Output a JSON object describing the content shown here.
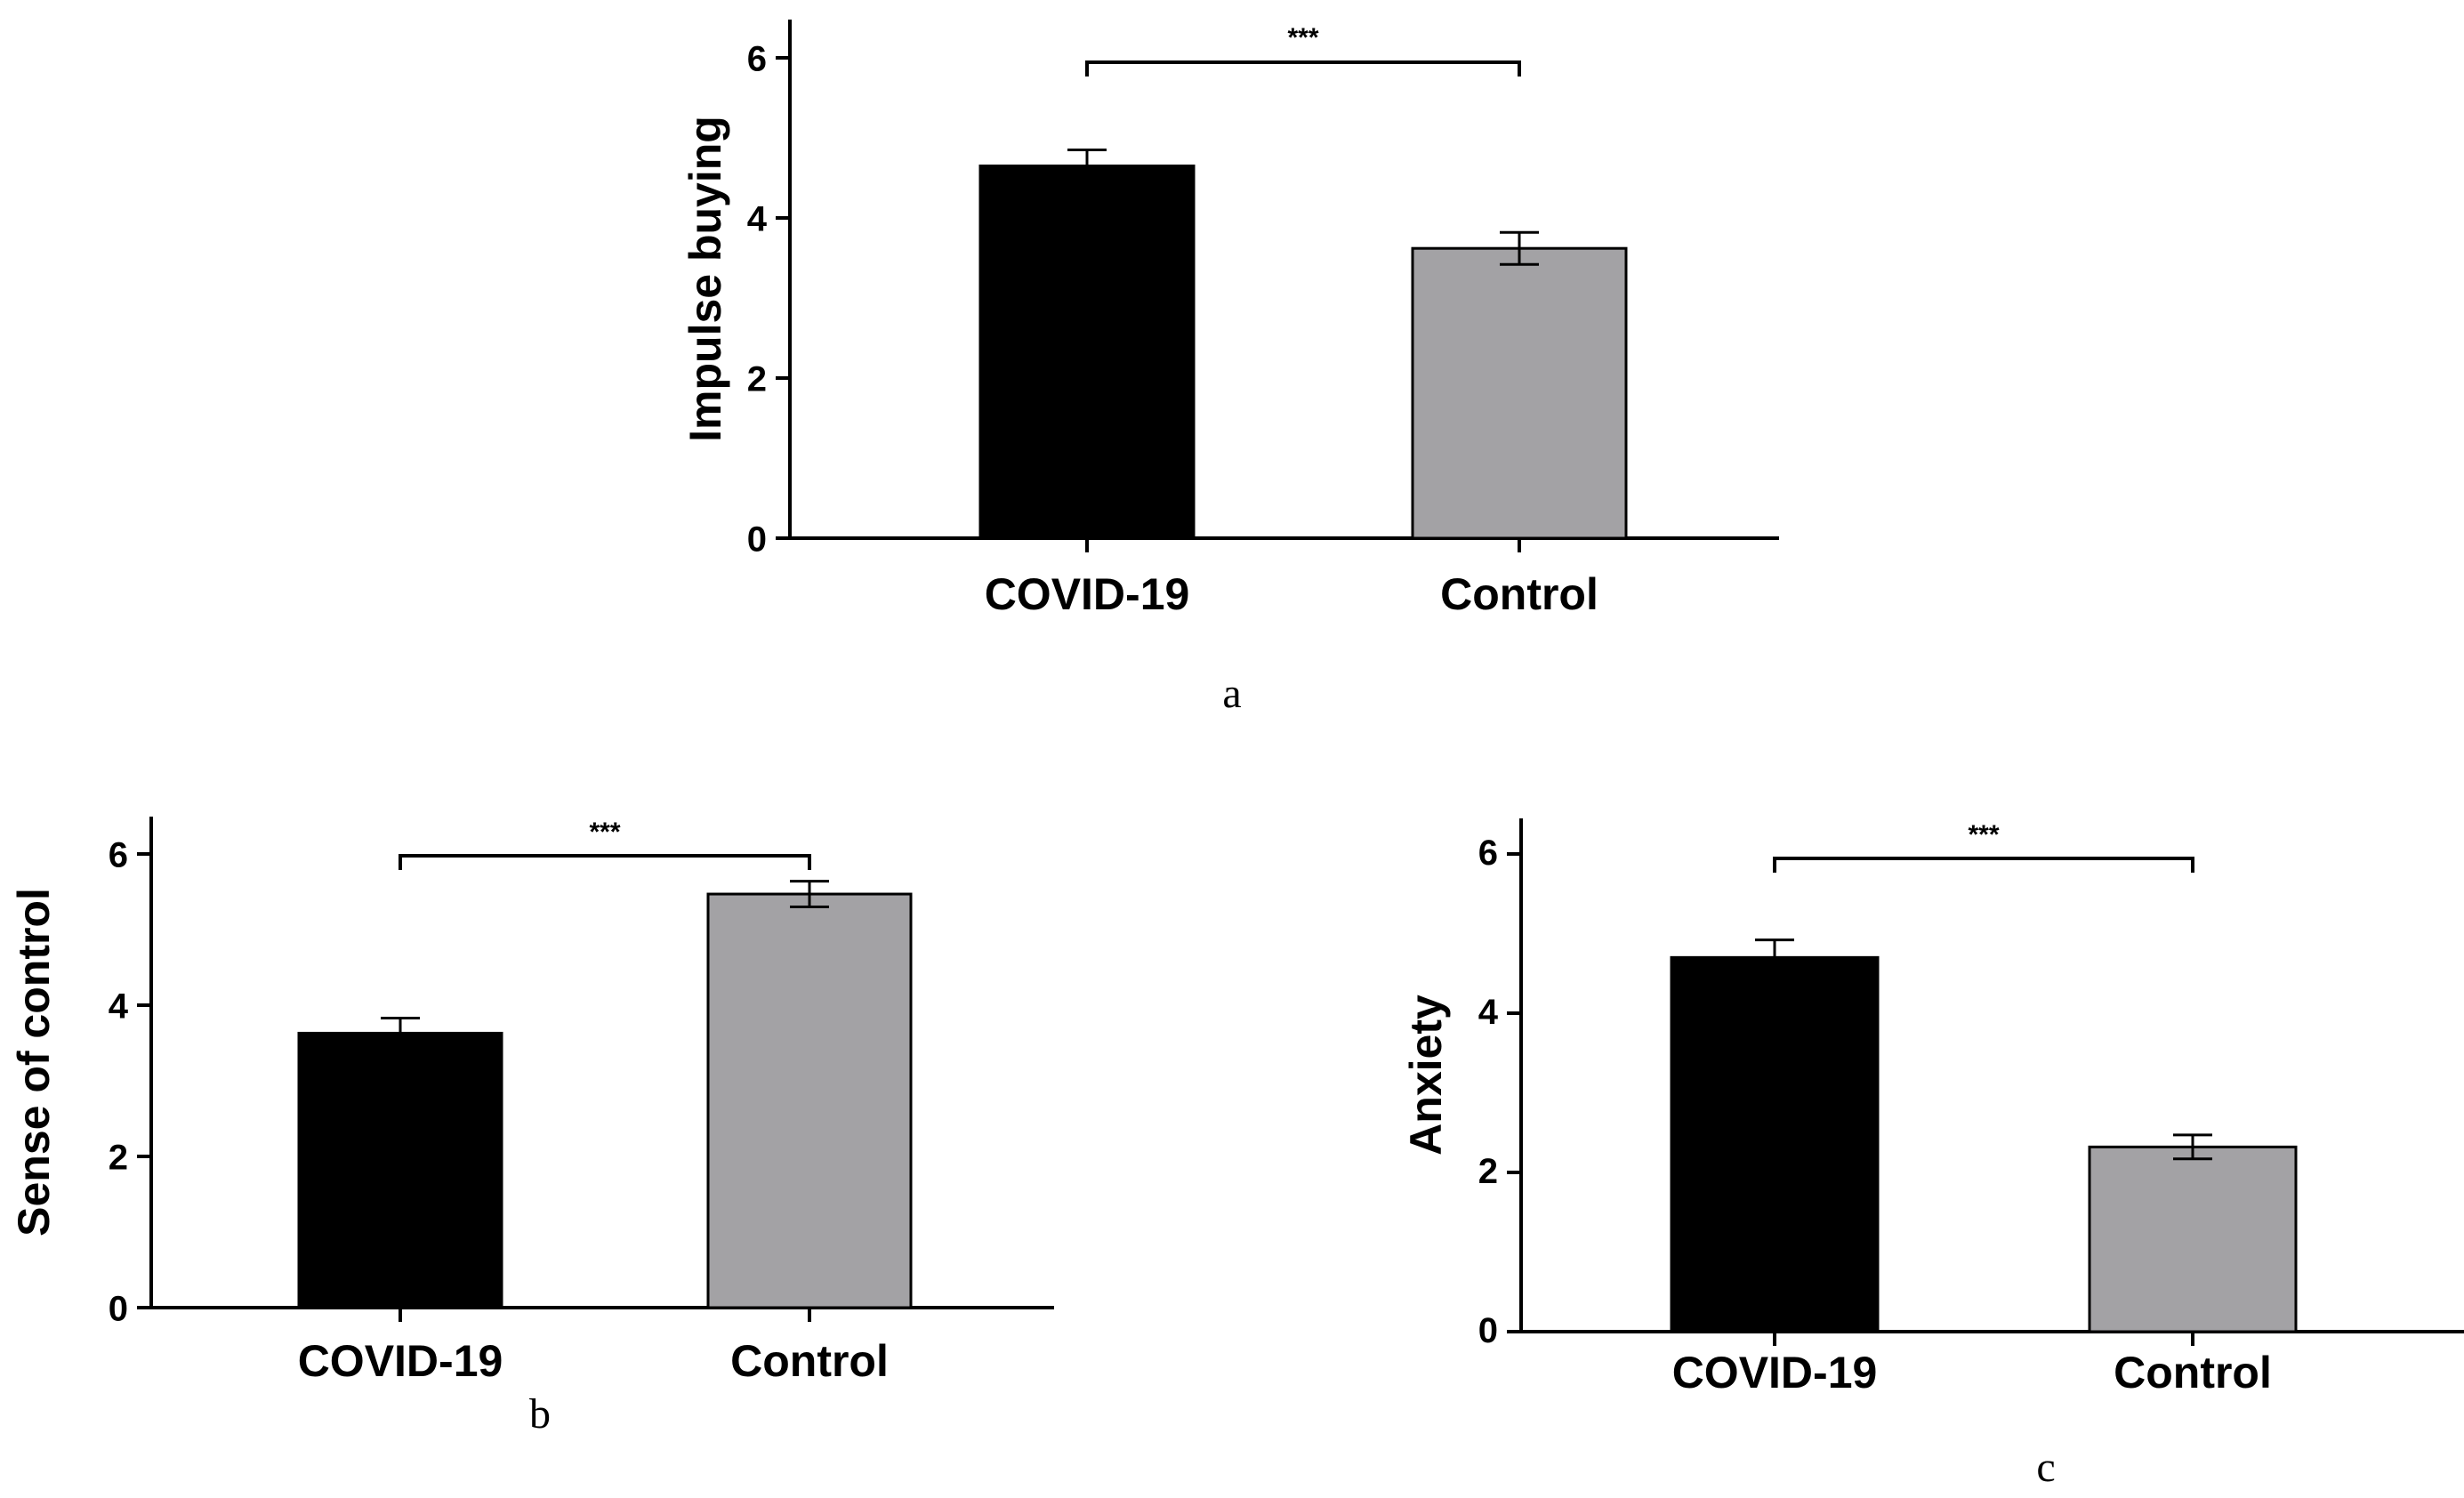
{
  "chart_data": [
    {
      "panel": "a",
      "type": "bar",
      "categories": [
        "COVID-19",
        "Control"
      ],
      "values": [
        4.65,
        3.62
      ],
      "errors": [
        0.2,
        0.2
      ],
      "bar_colors": [
        "#000000",
        "#a3a2a5"
      ],
      "ylabel": "Impulse buying",
      "xlabel": "",
      "ylim": [
        0,
        6.5
      ],
      "yticks": [
        0,
        2,
        4,
        6
      ],
      "yticklabels": [
        "0",
        "2",
        "4",
        "6"
      ],
      "significance": "***",
      "grid": false
    },
    {
      "panel": "b",
      "type": "bar",
      "categories": [
        "COVID-19",
        "Control"
      ],
      "values": [
        3.63,
        5.47
      ],
      "errors": [
        0.2,
        0.17
      ],
      "bar_colors": [
        "#000000",
        "#a3a2a5"
      ],
      "ylabel": "Sense of control",
      "xlabel": "",
      "ylim": [
        0,
        6.5
      ],
      "yticks": [
        0,
        2,
        4,
        6
      ],
      "yticklabels": [
        "0",
        "2",
        "4",
        "6"
      ],
      "significance": "***",
      "grid": false
    },
    {
      "panel": "c",
      "type": "bar",
      "categories": [
        "COVID-19",
        "Control"
      ],
      "values": [
        4.7,
        2.32
      ],
      "errors": [
        0.22,
        0.15
      ],
      "bar_colors": [
        "#000000",
        "#a3a2a5"
      ],
      "ylabel": "Anxiety",
      "xlabel": "",
      "ylim": [
        0,
        6.5
      ],
      "yticks": [
        0,
        2,
        4,
        6
      ],
      "yticklabels": [
        "0",
        "2",
        "4",
        "6"
      ],
      "significance": "***",
      "grid": false
    }
  ]
}
